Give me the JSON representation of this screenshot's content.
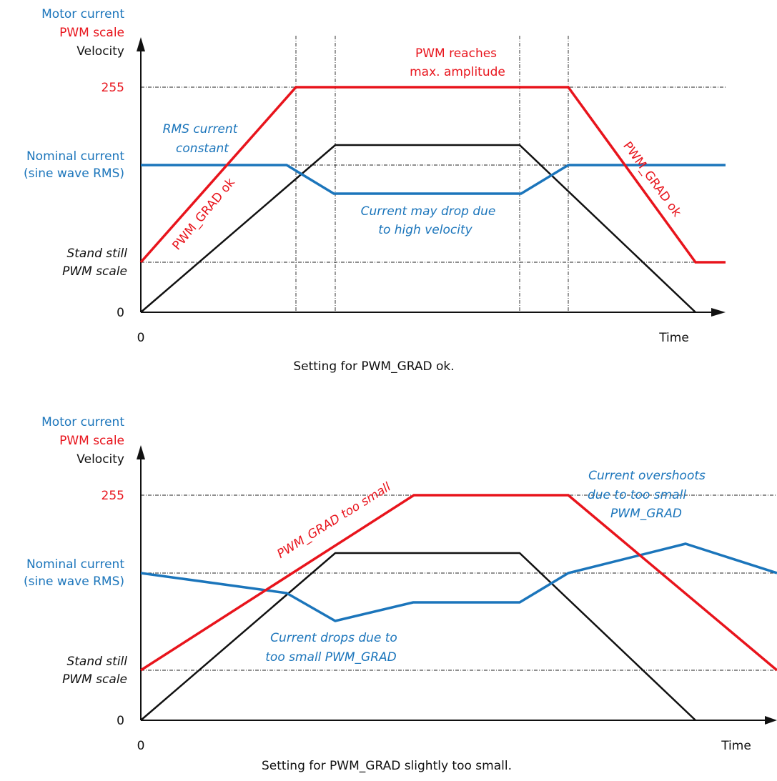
{
  "colors": {
    "current": "#1b75bb",
    "pwm": "#e8141c",
    "velocity": "#111111"
  },
  "diagram_ok": {
    "ylabel_current": "Motor current",
    "ylabel_pwm": "PWM scale",
    "ylabel_velocity": "Velocity",
    "tick_255": "255",
    "tick_nominal_1": "Nominal current",
    "tick_nominal_2": "(sine wave RMS)",
    "tick_standstill_1": "Stand still",
    "tick_standstill_2": "PWM scale",
    "tick_zero_y": "0",
    "tick_zero_x": "0",
    "xlabel": "Time",
    "ann_pwm_max_1": "PWM reaches",
    "ann_pwm_max_2": "max. amplitude",
    "ann_rms_1": "RMS current",
    "ann_rms_2": "constant",
    "ann_drop_1": "Current may drop due",
    "ann_drop_2": "to high velocity",
    "ann_grad_up": "PWM_GRAD ok",
    "ann_grad_down": "PWM_GRAD ok",
    "caption": "Setting for PWM_GRAD ok."
  },
  "diagram_small": {
    "ylabel_current": "Motor current",
    "ylabel_pwm": "PWM scale",
    "ylabel_velocity": "Velocity",
    "tick_255": "255",
    "tick_nominal_1": "Nominal current",
    "tick_nominal_2": "(sine wave RMS)",
    "tick_standstill_1": "Stand still",
    "tick_standstill_2": "PWM scale",
    "tick_zero_y": "0",
    "tick_zero_x": "0",
    "xlabel": "Time",
    "ann_grad_small": "PWM_GRAD too small",
    "ann_overshoot_1": "Current overshoots",
    "ann_overshoot_2": "due to too small",
    "ann_overshoot_3": "PWM_GRAD",
    "ann_drops_1": "Current drops due to",
    "ann_drops_2": "too small PWM_GRAD",
    "caption": "Setting for PWM_GRAD slightly too small."
  }
}
